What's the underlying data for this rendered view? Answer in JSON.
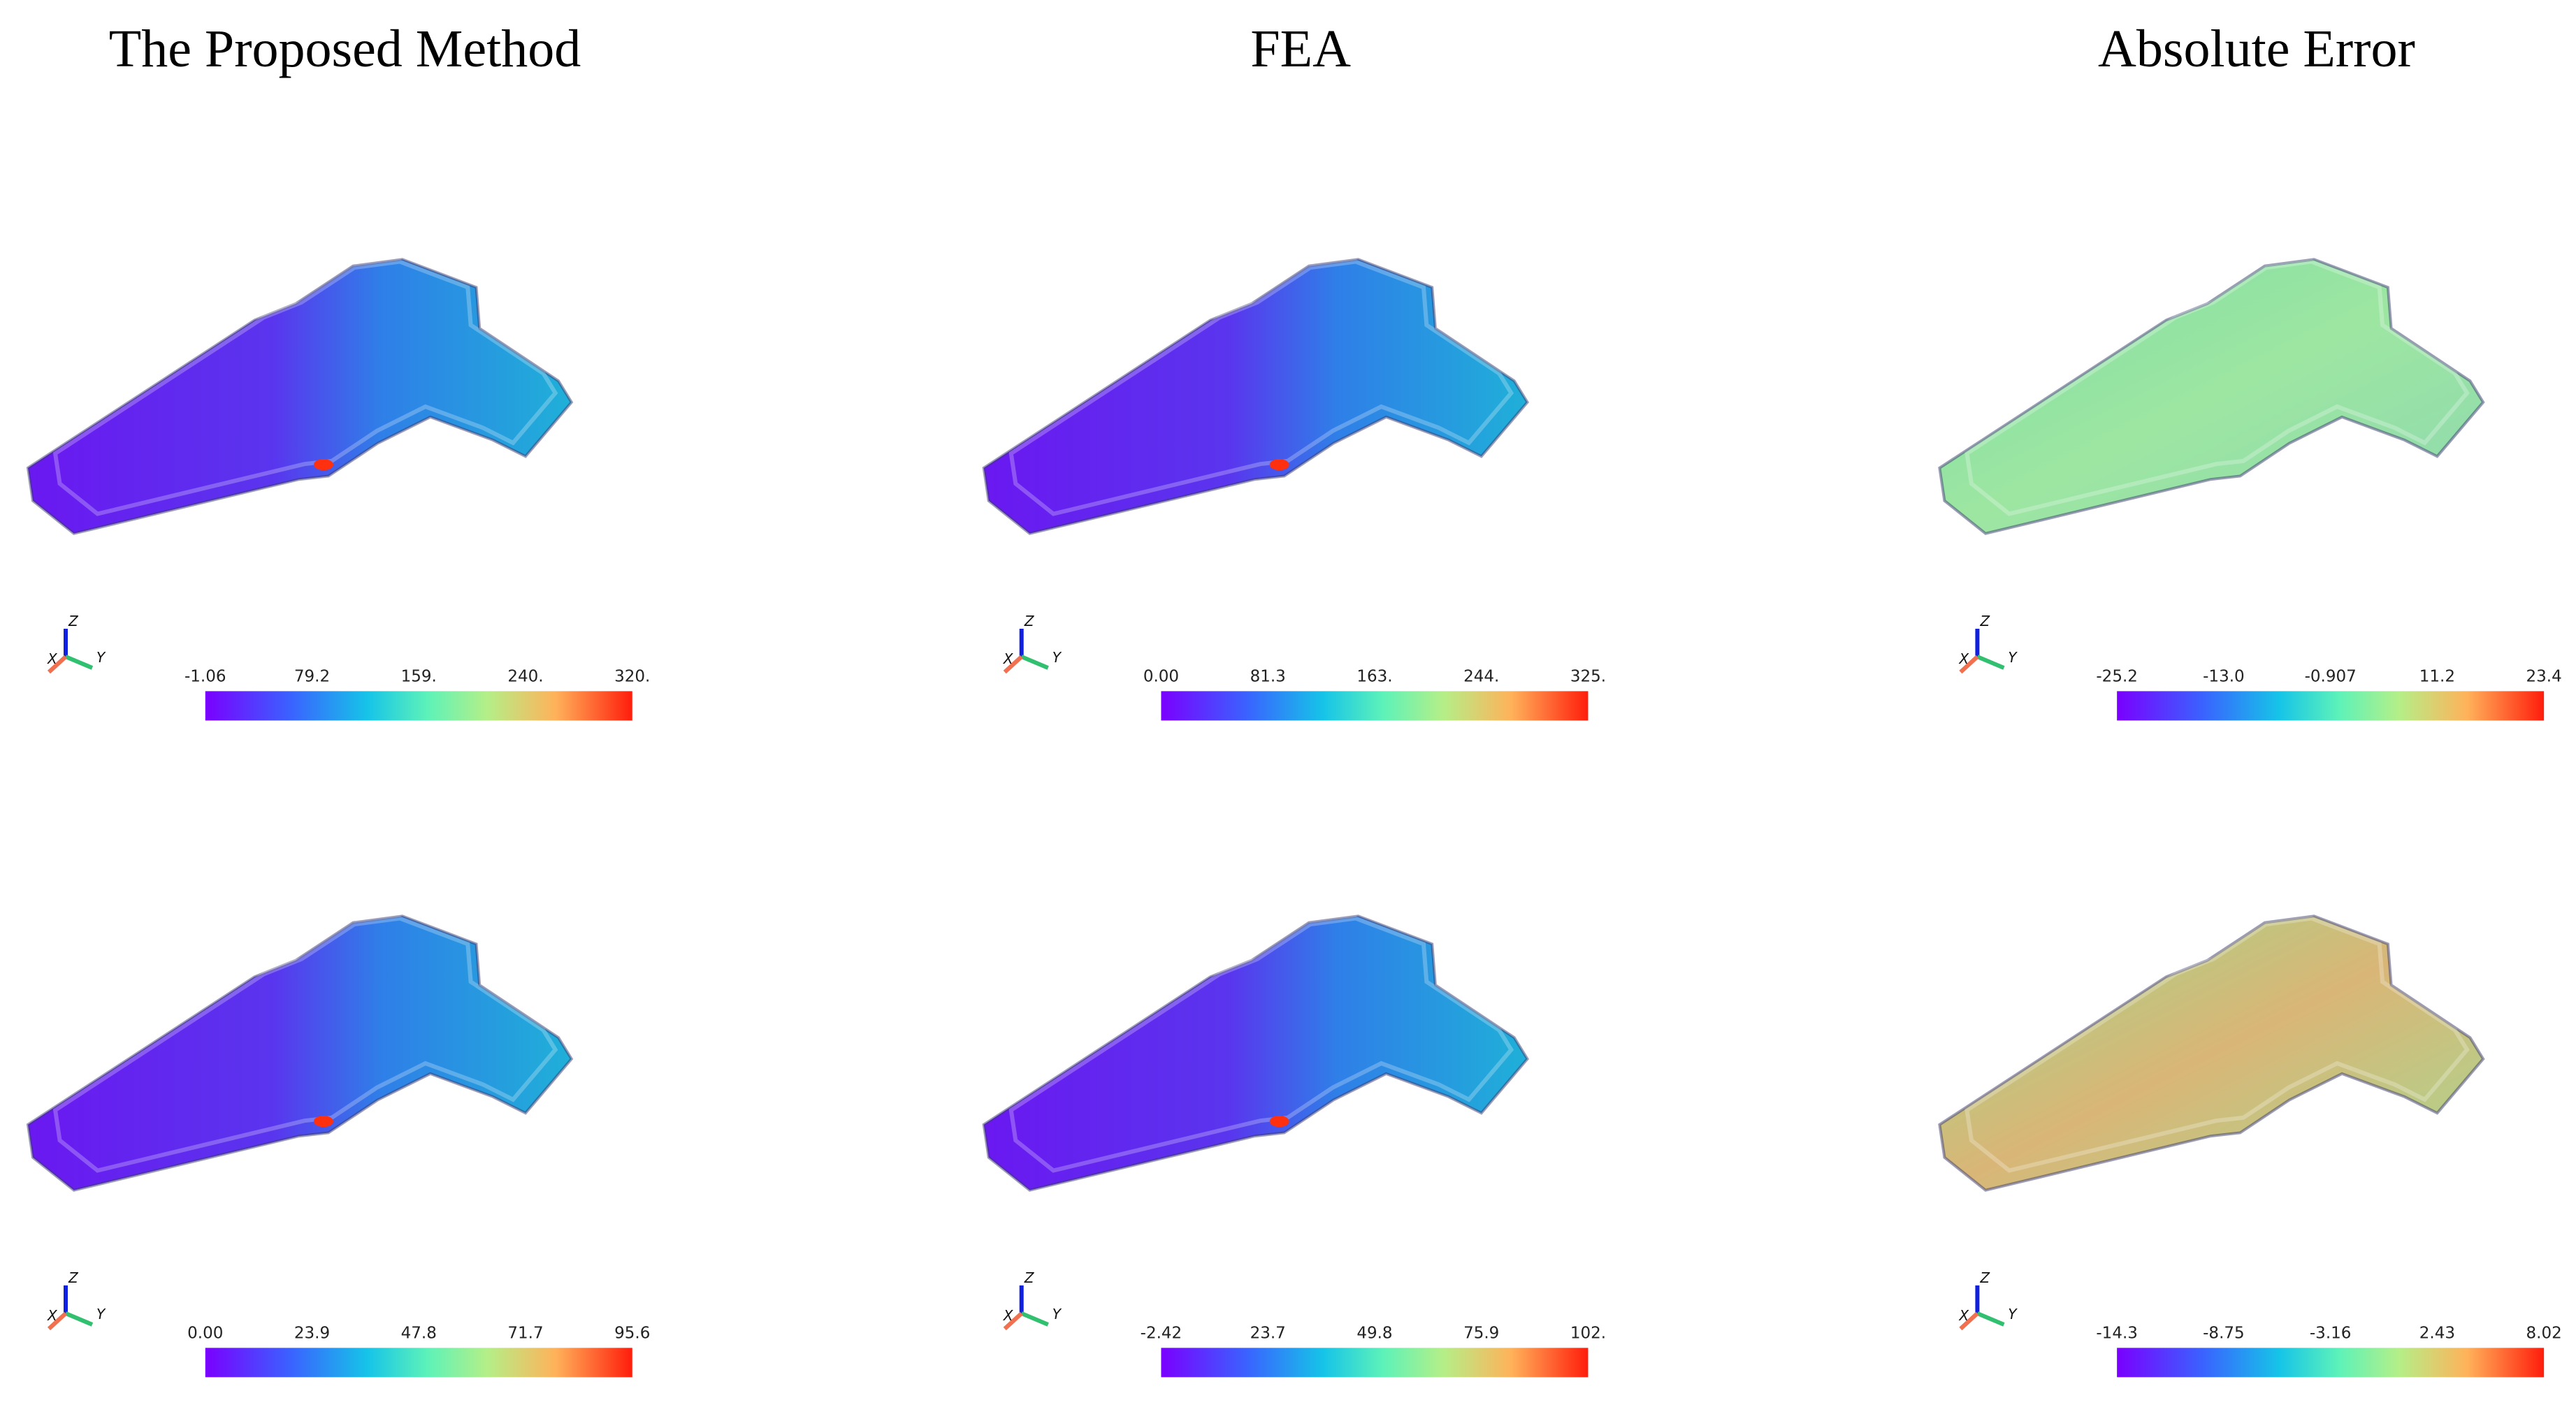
{
  "titles": [
    "The Proposed Method",
    "FEA",
    "Absolute Error"
  ],
  "axis_labels": {
    "x": "X",
    "y": "Y",
    "z": "Z"
  },
  "panels": [
    {
      "colorbar_ticks": [
        "-1.06",
        "79.2",
        "159.",
        "240.",
        "320."
      ]
    },
    {
      "colorbar_ticks": [
        "0.00",
        "81.3",
        "163.",
        "244.",
        "325."
      ]
    },
    {
      "colorbar_ticks": [
        "-25.2",
        "-13.0",
        "-0.907",
        "11.2",
        "23.4"
      ]
    },
    {
      "colorbar_ticks": [
        "0.00",
        "23.9",
        "47.8",
        "71.7",
        "95.6"
      ]
    },
    {
      "colorbar_ticks": [
        "-2.42",
        "23.7",
        "49.8",
        "75.9",
        "102."
      ]
    },
    {
      "colorbar_ticks": [
        "-14.3",
        "-8.75",
        "-3.16",
        "2.43",
        "8.02"
      ]
    }
  ]
}
